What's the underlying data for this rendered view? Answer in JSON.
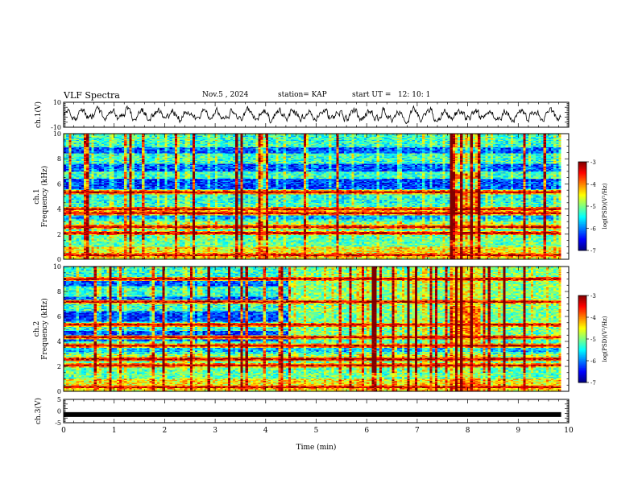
{
  "header": {
    "title": "VLF Spectra",
    "date": "Nov.5 , 2024",
    "station": "station= KAP",
    "start": "start UT =   12: 10: 1"
  },
  "chart_data": [
    {
      "id": "ch1-waveform",
      "type": "line",
      "ylabel": "ch.1(V)",
      "yticks": [
        "10",
        "-10"
      ],
      "ylim": [
        -10,
        10
      ],
      "xlim": [
        0,
        10
      ],
      "x_end": 9.85,
      "description_values": {
        "mean": 0,
        "typical_amplitude": 5
      }
    },
    {
      "id": "ch1-spectrogram",
      "type": "heatmap",
      "title": "ch.1",
      "ylabel": "Frequency (kHz)",
      "yticks": [
        "0",
        "2",
        "4",
        "6",
        "8",
        "10"
      ],
      "ylim": [
        0,
        10
      ],
      "xlim": [
        0,
        10
      ],
      "x_end": 9.85,
      "disturbance_interval_min": [
        7.65,
        8.25
      ],
      "strong_lines_khz": [
        0.3,
        2.1,
        2.6,
        3.7,
        4.0,
        5.3
      ],
      "colorbar": {
        "label": "log(PSD)(V²/Hz)",
        "ticks": [
          "-3",
          "-4",
          "-5",
          "-6",
          "-7"
        ],
        "range": [
          -7,
          -3
        ]
      }
    },
    {
      "id": "ch2-spectrogram",
      "type": "heatmap",
      "title": "ch.2",
      "ylabel": "Frequency (kHz)",
      "yticks": [
        "0",
        "2",
        "4",
        "6",
        "8",
        "10"
      ],
      "ylim": [
        0,
        10
      ],
      "xlim": [
        0,
        10
      ],
      "x_end": 9.85,
      "disturbance_interval_min": [
        7.65,
        8.25
      ],
      "strong_lines_khz": [
        0.3,
        2.1,
        2.6,
        3.7,
        4.3,
        5.3,
        7.2,
        9.0
      ],
      "colorbar": {
        "label": "log(PSD)(V²/Hz)",
        "ticks": [
          "-3",
          "-4",
          "-5",
          "-6",
          "-7"
        ],
        "range": [
          -7,
          -3
        ]
      }
    },
    {
      "id": "ch3-waveform",
      "type": "line",
      "ylabel": "ch.3(V)",
      "yticks": [
        "5",
        "0",
        "-5"
      ],
      "ylim": [
        -5,
        5
      ],
      "xlim": [
        0,
        10
      ],
      "x_end": 9.85,
      "description_values": {
        "mean": -1.5
      }
    }
  ],
  "xaxis": {
    "label": "Time (min)",
    "ticks": [
      "0",
      "1",
      "2",
      "3",
      "4",
      "5",
      "6",
      "7",
      "8",
      "9",
      "10"
    ]
  }
}
